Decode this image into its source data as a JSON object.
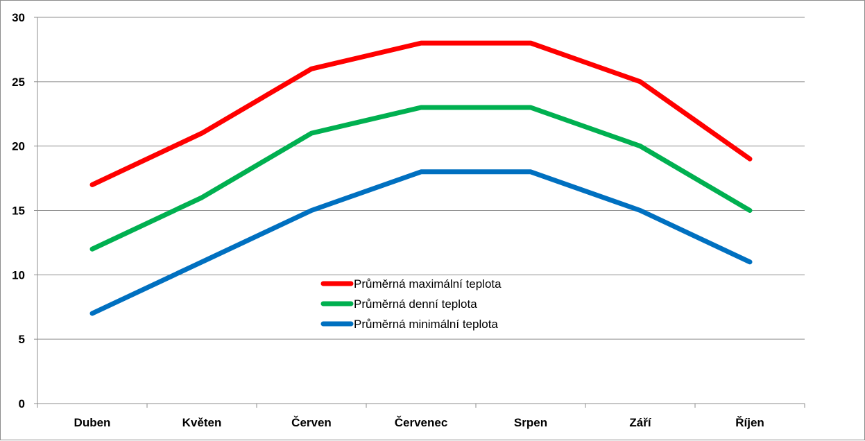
{
  "chart_data": {
    "type": "line",
    "title": "",
    "xlabel": "",
    "ylabel": "",
    "categories": [
      "Duben",
      "Květen",
      "Červen",
      "Červenec",
      "Srpen",
      "Září",
      "Říjen"
    ],
    "ylim": [
      0,
      30
    ],
    "yticks": [
      0,
      5,
      10,
      15,
      20,
      25,
      30
    ],
    "grid": true,
    "legend_position": "center",
    "series": [
      {
        "name": "Průměrná maximální teplota",
        "color": "#ff0000",
        "values": [
          17,
          21,
          26,
          28,
          28,
          25,
          19
        ]
      },
      {
        "name": "Průměrná denní teplota",
        "color": "#00b050",
        "values": [
          12,
          16,
          21,
          23,
          23,
          20,
          15
        ]
      },
      {
        "name": "Průměrná minimální teplota",
        "color": "#0070c0",
        "values": [
          7,
          11,
          15,
          18,
          18,
          15,
          11
        ]
      }
    ]
  }
}
